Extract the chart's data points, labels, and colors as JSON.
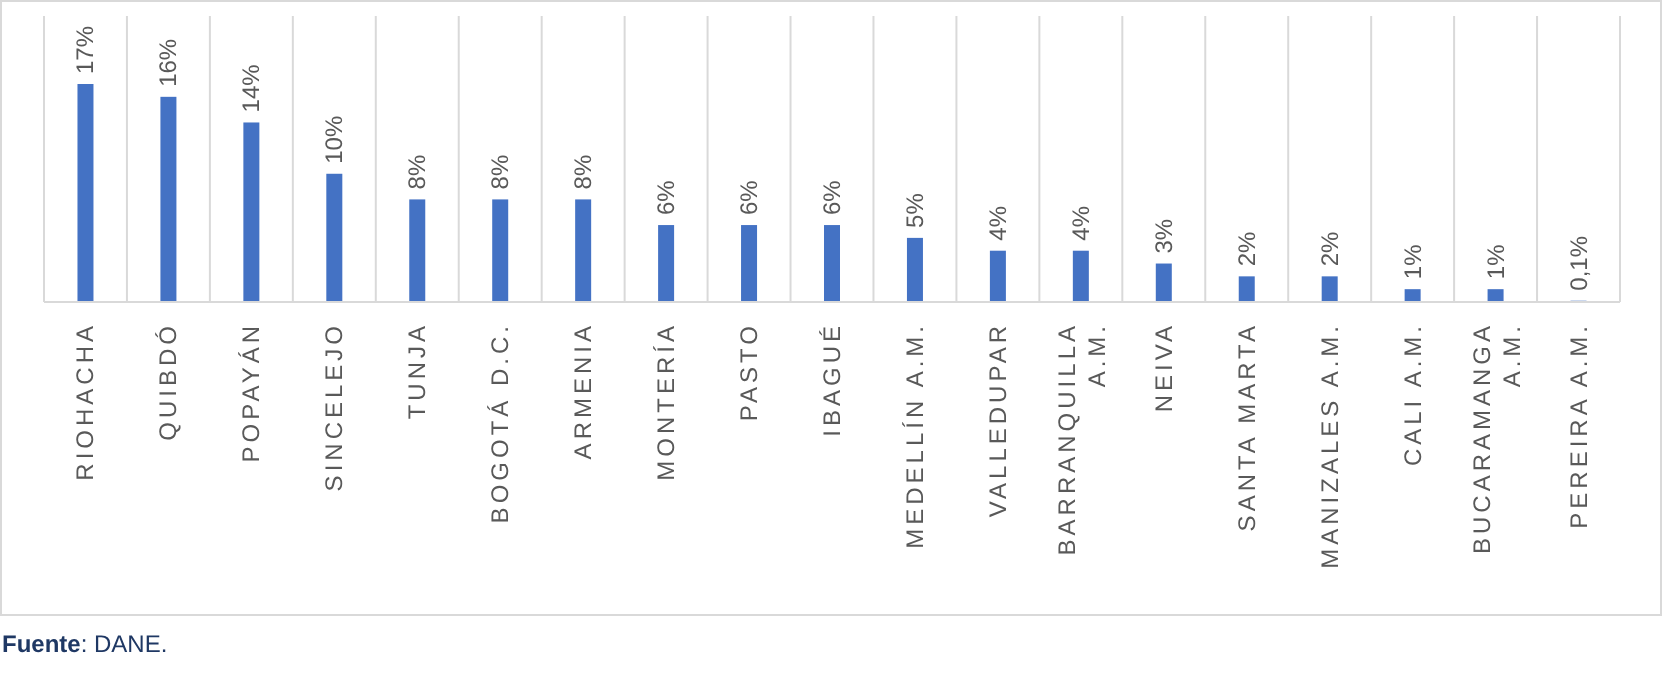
{
  "chart_data": {
    "type": "bar",
    "categories": [
      "RIOHACHA",
      "QUIBDÓ",
      "POPAYÁN",
      "SINCELEJO",
      "TUNJA",
      "BOGOTÁ D.C.",
      "ARMENIA",
      "MONTERÍA",
      "PASTO",
      "IBAGUÉ",
      "MEDELLÍN A.M.",
      "VALLEDUPAR",
      "BARRANQUILLA A.M.",
      "NEIVA",
      "SANTA MARTA",
      "MANIZALES A.M.",
      "CALI A.M.",
      "BUCARAMANGA A.M.",
      "PEREIRA A.M."
    ],
    "values": [
      17,
      16,
      14,
      10,
      8,
      8,
      8,
      6,
      6,
      6,
      5,
      4,
      4,
      3,
      2,
      2,
      1,
      1,
      0.1
    ],
    "value_labels": [
      "17%",
      "16%",
      "14%",
      "10%",
      "8%",
      "8%",
      "8%",
      "6%",
      "6%",
      "6%",
      "5%",
      "4%",
      "4%",
      "3%",
      "2%",
      "2%",
      "1%",
      "1%",
      "0,1%"
    ],
    "color": "#4472c4",
    "grid": "x",
    "annotations": [
      "Fuente: DANE."
    ]
  }
}
